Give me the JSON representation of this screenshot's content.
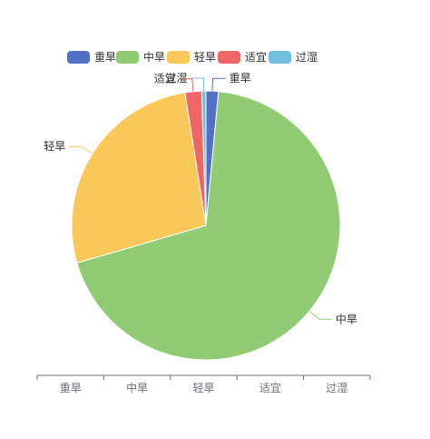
{
  "chart_data": {
    "type": "pie",
    "title": "",
    "legend_position": "top",
    "categories": [
      "重旱",
      "中旱",
      "轻旱",
      "适宜",
      "过湿"
    ],
    "values": [
      1.5,
      69.0,
      27.0,
      2.0,
      0.5
    ],
    "colors": [
      "#5470c6",
      "#91cc75",
      "#fac858",
      "#ee6666",
      "#73c0de"
    ],
    "axis_categories": [
      "重旱",
      "中旱",
      "轻旱",
      "适宜",
      "过湿"
    ]
  }
}
